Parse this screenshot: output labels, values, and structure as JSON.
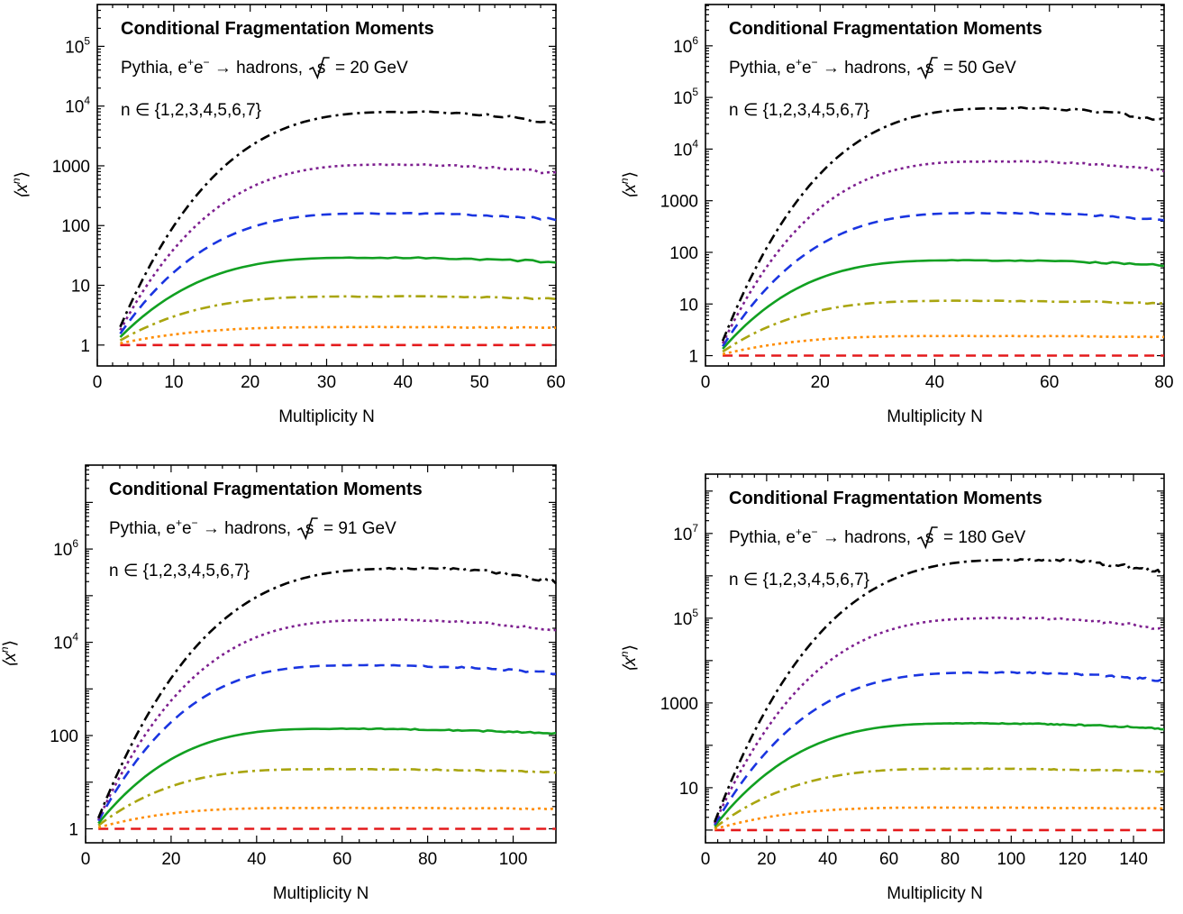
{
  "chart_data": [
    {
      "type": "line",
      "title": "Conditional Fragmentation Moments",
      "subtitle": {
        "prefix": "Pythia, e",
        "mid": "e",
        "arrow": " → hadrons, ",
        "radicand": "s",
        "energy": " = 20 GeV"
      },
      "n_label": "n ∈ {1,2,3,4,5,6,7}",
      "xlabel": "Multiplicity N",
      "ylabel": "⟨x",
      "ylabel_sup": "n",
      "ylabel_close": "⟩",
      "xlim": [
        0,
        60
      ],
      "ylim_log10": [
        -0.35,
        5.7
      ],
      "yscale": "log",
      "xticks": [
        0,
        10,
        20,
        30,
        40,
        50,
        60
      ],
      "yticks": [
        {
          "p": 0,
          "t": "1"
        },
        {
          "p": 1,
          "t": "10"
        },
        {
          "p": 2,
          "t": "100"
        },
        {
          "p": 3,
          "t": "1000"
        },
        {
          "p": 4,
          "base": "10",
          "exp": "4"
        },
        {
          "p": 5,
          "base": "10",
          "exp": "5"
        }
      ],
      "x_start": 3,
      "x_end": 60,
      "series": [
        {
          "n": 1,
          "color": "#e41a1c",
          "style": "dashed",
          "peak": 1,
          "peak_x": 30,
          "noise": 0
        },
        {
          "n": 2,
          "color": "#ff8c00",
          "style": "dotted",
          "peak": 2,
          "peak_x": 35,
          "noise": 0.01
        },
        {
          "n": 3,
          "color": "#a9a50f",
          "style": "dashdot",
          "peak": 6.5,
          "peak_x": 35,
          "noise": 0.015
        },
        {
          "n": 4,
          "color": "#11a021",
          "style": "solid",
          "peak": 29,
          "peak_x": 36,
          "noise": 0.02
        },
        {
          "n": 5,
          "color": "#1a35e0",
          "style": "dashed",
          "peak": 160,
          "peak_x": 38,
          "noise": 0.025
        },
        {
          "n": 6,
          "color": "#7d1f8f",
          "style": "dotted",
          "peak": 1050,
          "peak_x": 40,
          "noise": 0.03
        },
        {
          "n": 7,
          "color": "#000000",
          "style": "dashdot",
          "peak": 8000,
          "peak_x": 42,
          "noise": 0.04
        }
      ]
    },
    {
      "type": "line",
      "title": "Conditional Fragmentation Moments",
      "subtitle": {
        "prefix": "Pythia, e",
        "mid": "e",
        "arrow": " → hadrons, ",
        "radicand": "s",
        "energy": " = 50 GeV"
      },
      "n_label": "n ∈ {1,2,3,4,5,6,7}",
      "xlabel": "Multiplicity N",
      "ylabel": "⟨x",
      "ylabel_sup": "n",
      "ylabel_close": "⟩",
      "xlim": [
        0,
        80
      ],
      "ylim_log10": [
        -0.2,
        6.8
      ],
      "yscale": "log",
      "xticks": [
        0,
        20,
        40,
        60,
        80
      ],
      "yticks": [
        {
          "p": 0,
          "t": "1"
        },
        {
          "p": 1,
          "t": "10"
        },
        {
          "p": 2,
          "t": "100"
        },
        {
          "p": 3,
          "t": "1000"
        },
        {
          "p": 4,
          "base": "10",
          "exp": "4"
        },
        {
          "p": 5,
          "base": "10",
          "exp": "5"
        },
        {
          "p": 6,
          "base": "10",
          "exp": "6"
        }
      ],
      "x_start": 3,
      "x_end": 80,
      "series": [
        {
          "n": 1,
          "color": "#e41a1c",
          "style": "dashed",
          "peak": 1,
          "peak_x": 40,
          "noise": 0
        },
        {
          "n": 2,
          "color": "#ff8c00",
          "style": "dotted",
          "peak": 2.4,
          "peak_x": 45,
          "noise": 0.01
        },
        {
          "n": 3,
          "color": "#a9a50f",
          "style": "dashdot",
          "peak": 11.5,
          "peak_x": 45,
          "noise": 0.015
        },
        {
          "n": 4,
          "color": "#11a021",
          "style": "solid",
          "peak": 70,
          "peak_x": 46,
          "noise": 0.02
        },
        {
          "n": 5,
          "color": "#1a35e0",
          "style": "dashed",
          "peak": 580,
          "peak_x": 50,
          "noise": 0.025
        },
        {
          "n": 6,
          "color": "#7d1f8f",
          "style": "dotted",
          "peak": 5800,
          "peak_x": 52,
          "noise": 0.03
        },
        {
          "n": 7,
          "color": "#000000",
          "style": "dashdot",
          "peak": 62000,
          "peak_x": 55,
          "noise": 0.04
        }
      ]
    },
    {
      "type": "line",
      "title": "Conditional Fragmentation Moments",
      "subtitle": {
        "prefix": "Pythia, e",
        "mid": "e",
        "arrow": " → hadrons, ",
        "radicand": "s",
        "energy": " = 91 GeV"
      },
      "n_label": "n ∈ {1,2,3,4,5,6,7}",
      "xlabel": "Multiplicity N",
      "ylabel": "⟨x",
      "ylabel_sup": "n",
      "ylabel_close": "⟩",
      "xlim": [
        0,
        110
      ],
      "ylim_log10": [
        -0.3,
        7.8
      ],
      "yscale": "log",
      "xticks": [
        0,
        20,
        40,
        60,
        80,
        100
      ],
      "yticks": [
        {
          "p": 0,
          "t": "1"
        },
        {
          "p": 2,
          "t": "100"
        },
        {
          "p": 4,
          "base": "10",
          "exp": "4"
        },
        {
          "p": 6,
          "base": "10",
          "exp": "6"
        }
      ],
      "x_start": 3,
      "x_end": 110,
      "series": [
        {
          "n": 1,
          "color": "#e41a1c",
          "style": "dashed",
          "peak": 1,
          "peak_x": 55,
          "noise": 0
        },
        {
          "n": 2,
          "color": "#ff8c00",
          "style": "dotted",
          "peak": 2.8,
          "peak_x": 55,
          "noise": 0.01
        },
        {
          "n": 3,
          "color": "#a9a50f",
          "style": "dashdot",
          "peak": 19,
          "peak_x": 58,
          "noise": 0.015
        },
        {
          "n": 4,
          "color": "#11a021",
          "style": "solid",
          "peak": 140,
          "peak_x": 60,
          "noise": 0.02
        },
        {
          "n": 5,
          "color": "#1a35e0",
          "style": "dashed",
          "peak": 3200,
          "peak_x": 66,
          "noise": 0.025
        },
        {
          "n": 6,
          "color": "#7d1f8f",
          "style": "dotted",
          "peak": 30000,
          "peak_x": 72,
          "noise": 0.03
        },
        {
          "n": 7,
          "color": "#000000",
          "style": "dashdot",
          "peak": 380000,
          "peak_x": 78,
          "noise": 0.05
        }
      ]
    },
    {
      "type": "line",
      "title": "Conditional Fragmentation Moments",
      "subtitle": {
        "prefix": "Pythia, e",
        "mid": "e",
        "arrow": " → hadrons, ",
        "radicand": "s",
        "energy": " = 180 GeV"
      },
      "n_label": "n ∈ {1,2,3,4,5,6,7}",
      "xlabel": "Multiplicity N",
      "ylabel": "⟨x",
      "ylabel_sup": "n",
      "ylabel_close": "⟩",
      "xlim": [
        0,
        150
      ],
      "ylim_log10": [
        -0.3,
        8.4
      ],
      "yscale": "log",
      "xticks": [
        0,
        20,
        40,
        60,
        80,
        100,
        120,
        140
      ],
      "yticks": [
        {
          "p": 1,
          "t": "10"
        },
        {
          "p": 3,
          "t": "1000"
        },
        {
          "p": 5,
          "base": "10",
          "exp": "5"
        },
        {
          "p": 7,
          "base": "10",
          "exp": "7"
        }
      ],
      "x_start": 3,
      "x_end": 150,
      "series": [
        {
          "n": 1,
          "color": "#e41a1c",
          "style": "dashed",
          "peak": 1,
          "peak_x": 80,
          "noise": 0
        },
        {
          "n": 2,
          "color": "#ff8c00",
          "style": "dotted",
          "peak": 3.4,
          "peak_x": 80,
          "noise": 0.01
        },
        {
          "n": 3,
          "color": "#a9a50f",
          "style": "dashdot",
          "peak": 28,
          "peak_x": 85,
          "noise": 0.015
        },
        {
          "n": 4,
          "color": "#11a021",
          "style": "solid",
          "peak": 330,
          "peak_x": 88,
          "noise": 0.02
        },
        {
          "n": 5,
          "color": "#1a35e0",
          "style": "dashed",
          "peak": 5200,
          "peak_x": 95,
          "noise": 0.03
        },
        {
          "n": 6,
          "color": "#7d1f8f",
          "style": "dotted",
          "peak": 100000,
          "peak_x": 100,
          "noise": 0.04
        },
        {
          "n": 7,
          "color": "#000000",
          "style": "dashdot",
          "peak": 2400000,
          "peak_x": 108,
          "noise": 0.06
        }
      ]
    }
  ]
}
